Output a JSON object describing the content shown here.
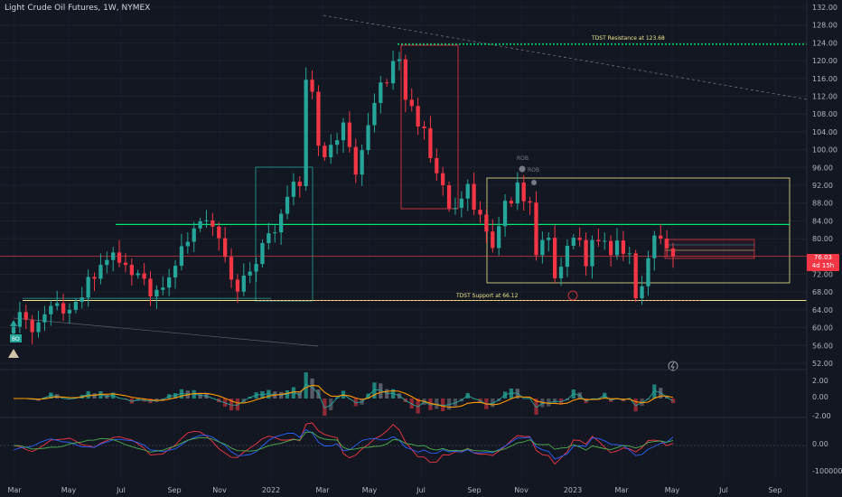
{
  "header": {
    "title": "Light Crude Oil Futures, 1W, NYMEX"
  },
  "annotations": {
    "resistance": "TDST Resistance at 123.68",
    "support": "TDST Support at 66.12",
    "rob1": "ROB",
    "rob2": "ROB",
    "bo": "BO"
  },
  "price_badge": {
    "price": "76.03",
    "countdown": "4d 15h"
  },
  "chart_data": {
    "type": "candlestick",
    "price_axis": {
      "ticks": [
        132.0,
        128.0,
        124.0,
        120.0,
        116.0,
        112.0,
        108.0,
        104.0,
        100.0,
        96.0,
        92.0,
        88.0,
        84.0,
        80.0,
        76.0,
        72.0,
        68.0,
        64.0,
        60.0,
        56.0,
        52.0
      ],
      "tick_labels": [
        "132.00",
        "128.00",
        "124.00",
        "120.00",
        "116.00",
        "112.00",
        "108.00",
        "104.00",
        "100.00",
        "96.00",
        "92.00",
        "88.00",
        "84.00",
        "80.00",
        "76.00",
        "72.00",
        "68.00",
        "64.00",
        "60.00",
        "56.00",
        "52.00"
      ]
    },
    "time_axis": [
      "Mar",
      "May",
      "Jul",
      "Sep",
      "Nov",
      "2022",
      "Mar",
      "May",
      "Jul",
      "Sep",
      "Nov",
      "2023",
      "Mar",
      "May",
      "Jul",
      "Sep"
    ],
    "indicator1_ticks": [
      "2.00",
      "0.00",
      "-2.00"
    ],
    "indicator2_ticks": [
      "0.00",
      "-100000.00"
    ],
    "levels": {
      "resistance": 123.68,
      "support": 66.12,
      "green_line": 83.2,
      "last_price": 76.03
    },
    "colors": {
      "up": "#26a69a",
      "down": "#f23645",
      "up_bright": "#2ebd85",
      "level": "#00e676",
      "box": "#f0e68c"
    },
    "closes": [
      60.2,
      63.5,
      61.8,
      59.0,
      61.2,
      63.0,
      64.9,
      65.5,
      63.2,
      64.0,
      65.8,
      66.8,
      71.4,
      71.0,
      74.1,
      75.2,
      76.9,
      74.6,
      74.1,
      71.8,
      72.2,
      71.0,
      67.0,
      68.5,
      69.0,
      71.3,
      73.9,
      78.3,
      79.3,
      82.3,
      83.9,
      84.1,
      82.7,
      80.1,
      75.9,
      70.8,
      68.1,
      71.7,
      72.6,
      74.3,
      79.0,
      81.2,
      81.4,
      85.6,
      89.4,
      92.8,
      91.8,
      115.7,
      113.0,
      100.9,
      98.3,
      101.1,
      102.1,
      106.1,
      100.6,
      94.4,
      99.9,
      105.5,
      110.5,
      115.1,
      114.9,
      119.9,
      120.3,
      111.2,
      109.8,
      105.2,
      104.8,
      98.1,
      94.7,
      92.0,
      86.8,
      86.9,
      89.0,
      92.3,
      86.5,
      85.4,
      81.6,
      77.9,
      82.8,
      88.5,
      87.9,
      92.6,
      88.4,
      88.1,
      76.3,
      79.7,
      80.2,
      71.1,
      73.7,
      78.4,
      80.2,
      79.7,
      73.8,
      79.7,
      79.4,
      79.5,
      76.3,
      79.6,
      76.6,
      76.7,
      66.6,
      69.3,
      75.6,
      80.7,
      80.0,
      77.8,
      76.03
    ]
  }
}
